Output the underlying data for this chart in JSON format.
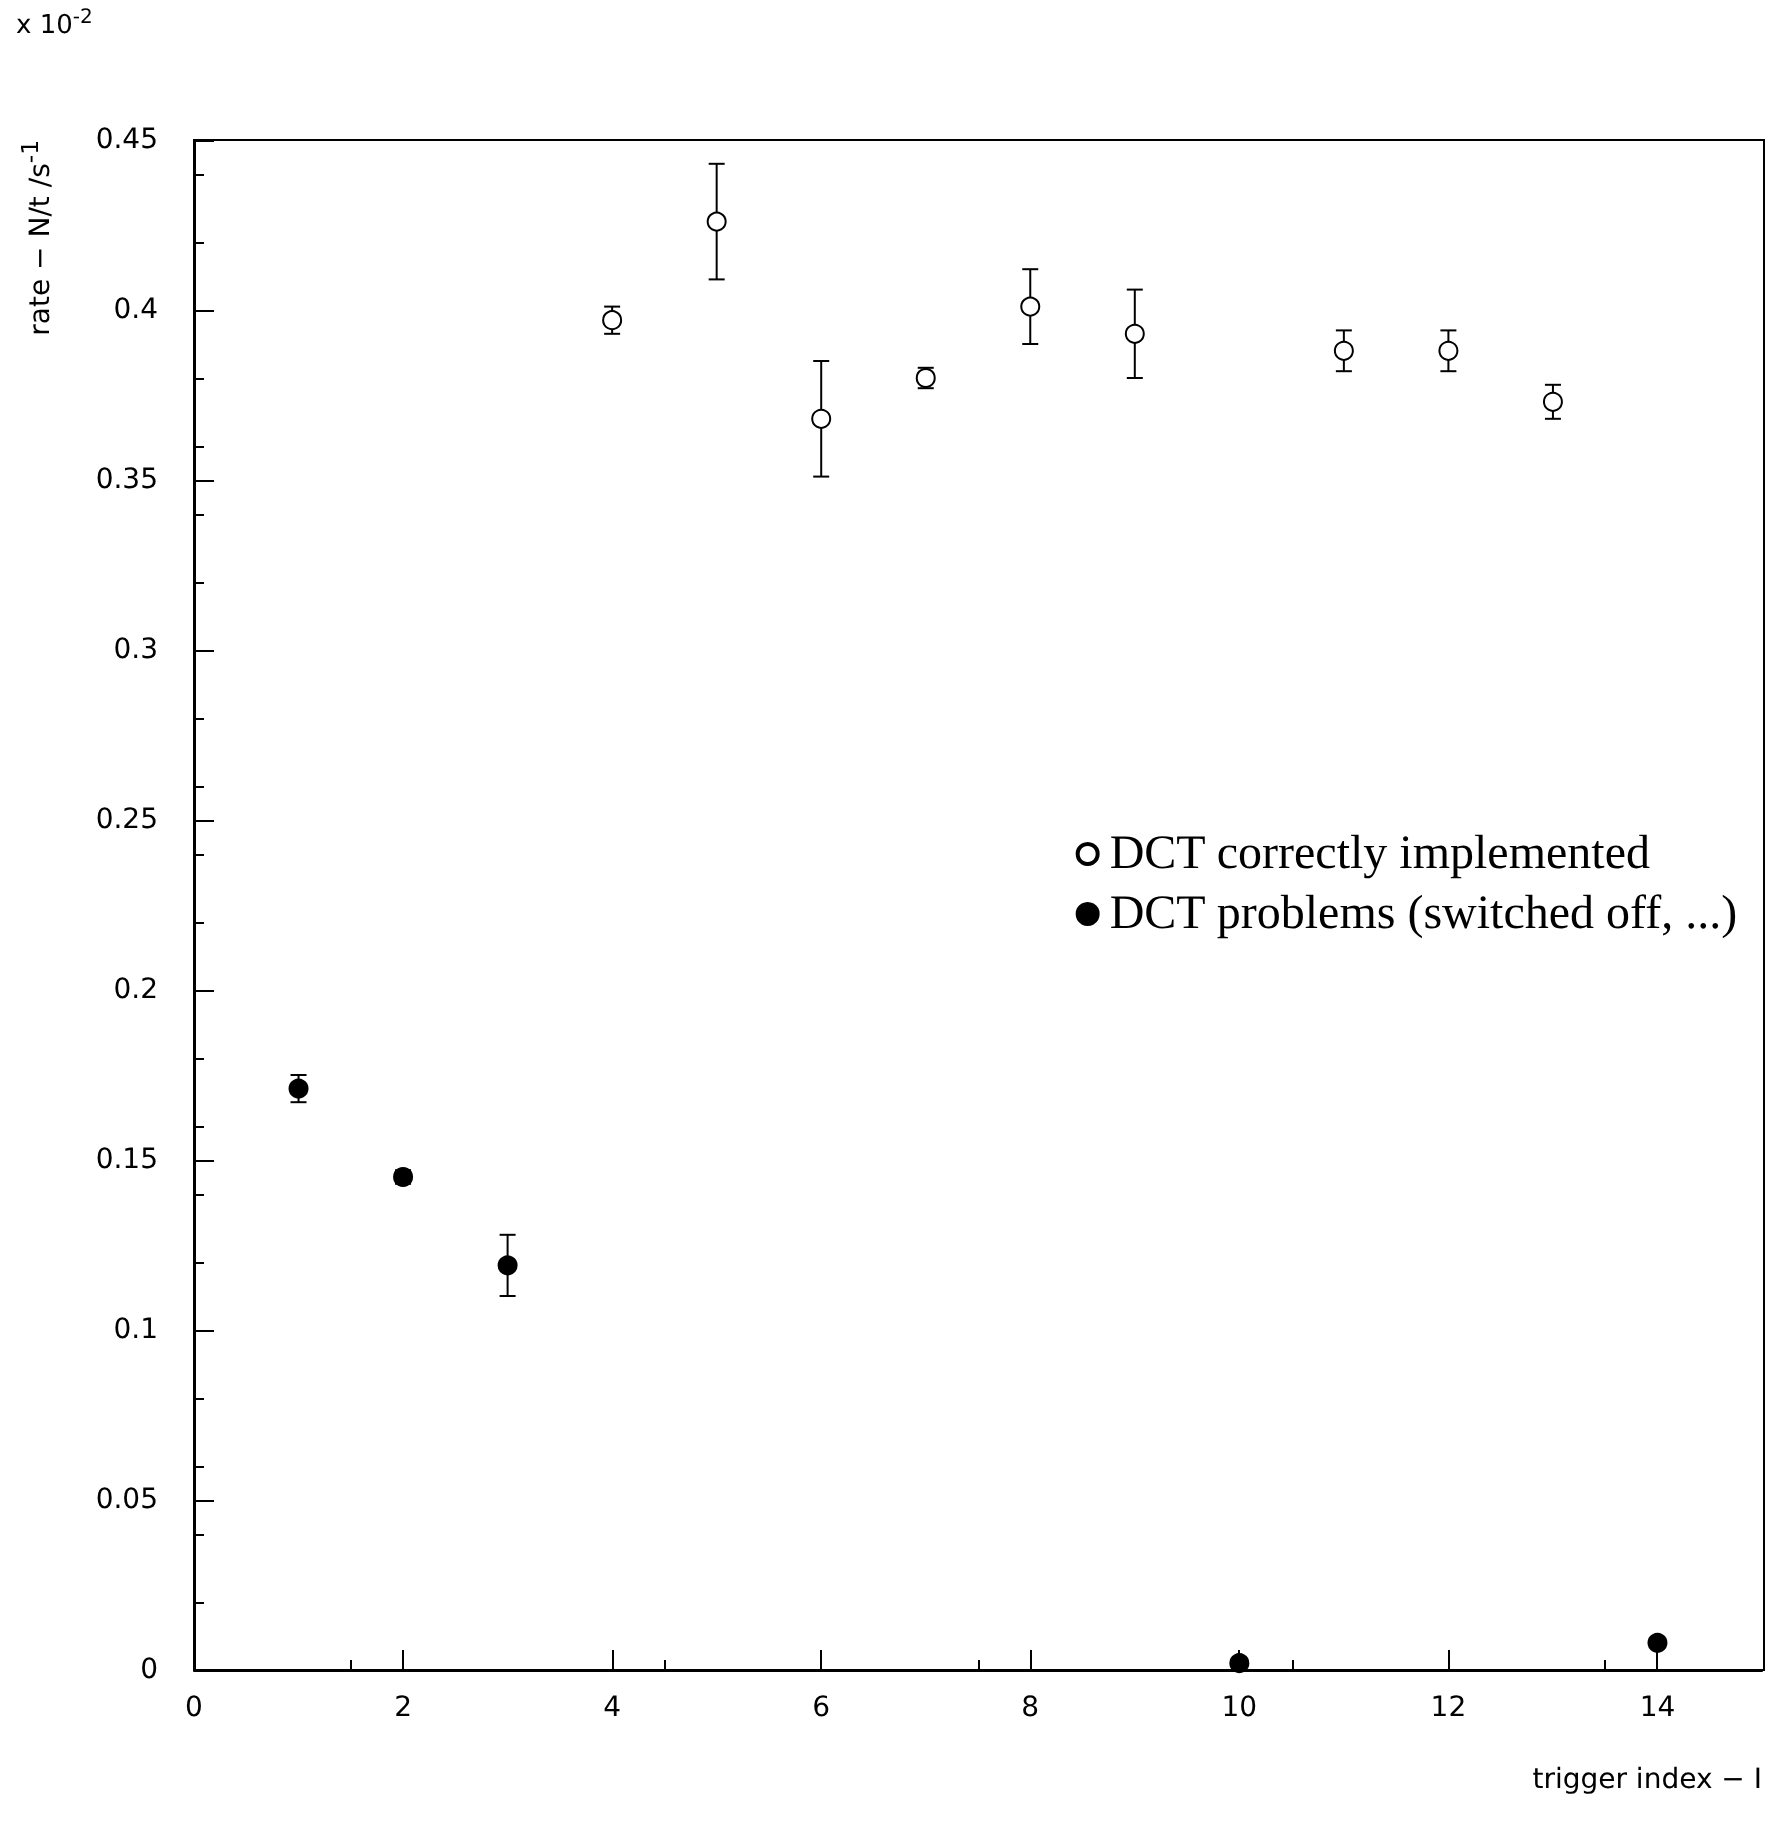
{
  "chart_data": {
    "type": "scatter",
    "xlabel": "trigger index − I",
    "ylabel": "rate − N/t /s$^{-1}$",
    "annotations": [
      "x 10$^{-2}$"
    ],
    "xlim": [
      0,
      15
    ],
    "xticks": [
      0,
      2,
      4,
      6,
      8,
      10,
      12,
      14
    ],
    "ylim": [
      0,
      0.45
    ],
    "yticks": [
      0,
      0.05,
      0.1,
      0.15,
      0.2,
      0.25,
      0.3,
      0.35,
      0.4,
      0.45
    ],
    "grid": false,
    "legend": "right",
    "marker": "circle",
    "series": [
      {
        "name": "DCT correctly implemented",
        "color": "#ffffff",
        "x": [
          4,
          5,
          6,
          7,
          8,
          9,
          11,
          12,
          13
        ],
        "values": [
          0.397,
          0.426,
          0.368,
          0.38,
          0.401,
          0.393,
          0.388,
          0.388,
          0.373
        ],
        "errors": [
          0.004,
          0.017,
          0.017,
          0.003,
          0.011,
          0.013,
          0.006,
          0.006,
          0.005
        ]
      },
      {
        "name": "DCT problems (switched off, ...)",
        "color": "#000000",
        "x": [
          1,
          2,
          3,
          10,
          14
        ],
        "values": [
          0.171,
          0.145,
          0.119,
          0.002,
          0.008
        ],
        "errors": [
          0.004,
          0.002,
          0.009,
          null,
          null
        ]
      }
    ]
  }
}
